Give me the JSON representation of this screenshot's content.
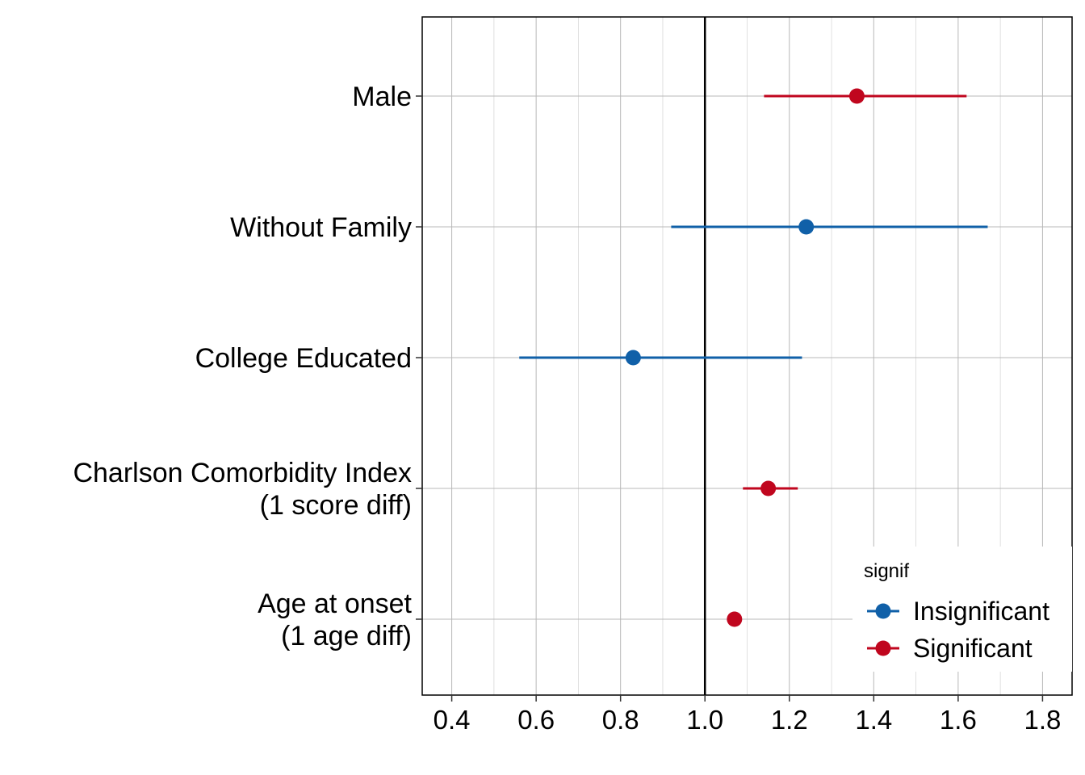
{
  "chart_data": {
    "type": "forest",
    "title": "",
    "xlabel": "",
    "ylabel": "",
    "xlim": [
      0.33,
      1.87
    ],
    "x_ticks": [
      0.4,
      0.6,
      0.8,
      1.0,
      1.2,
      1.4,
      1.6,
      1.8
    ],
    "x_tick_labels": [
      "0.4",
      "0.6",
      "0.8",
      "1.0",
      "1.2",
      "1.4",
      "1.6",
      "1.8"
    ],
    "reference_line": 1.0,
    "grid": true,
    "legend": {
      "title": "signif",
      "placement": "bottom-right",
      "entries": [
        {
          "label": "Insignificant",
          "color": "#1060a8"
        },
        {
          "label": "Significant",
          "color": "#c0061e"
        }
      ]
    },
    "rows": [
      {
        "label_lines": [
          "Male"
        ],
        "estimate": 1.36,
        "lower": 1.14,
        "upper": 1.62,
        "signif": "Significant"
      },
      {
        "label_lines": [
          "Without Family"
        ],
        "estimate": 1.24,
        "lower": 0.92,
        "upper": 1.67,
        "signif": "Insignificant"
      },
      {
        "label_lines": [
          "College Educated"
        ],
        "estimate": 0.83,
        "lower": 0.56,
        "upper": 1.23,
        "signif": "Insignificant"
      },
      {
        "label_lines": [
          "Charlson Comorbidity Index",
          "(1 score diff)"
        ],
        "estimate": 1.15,
        "lower": 1.09,
        "upper": 1.22,
        "signif": "Significant"
      },
      {
        "label_lines": [
          "Age at onset",
          "(1 age diff)"
        ],
        "estimate": 1.07,
        "lower": 1.06,
        "upper": 1.08,
        "signif": "Significant"
      }
    ]
  }
}
